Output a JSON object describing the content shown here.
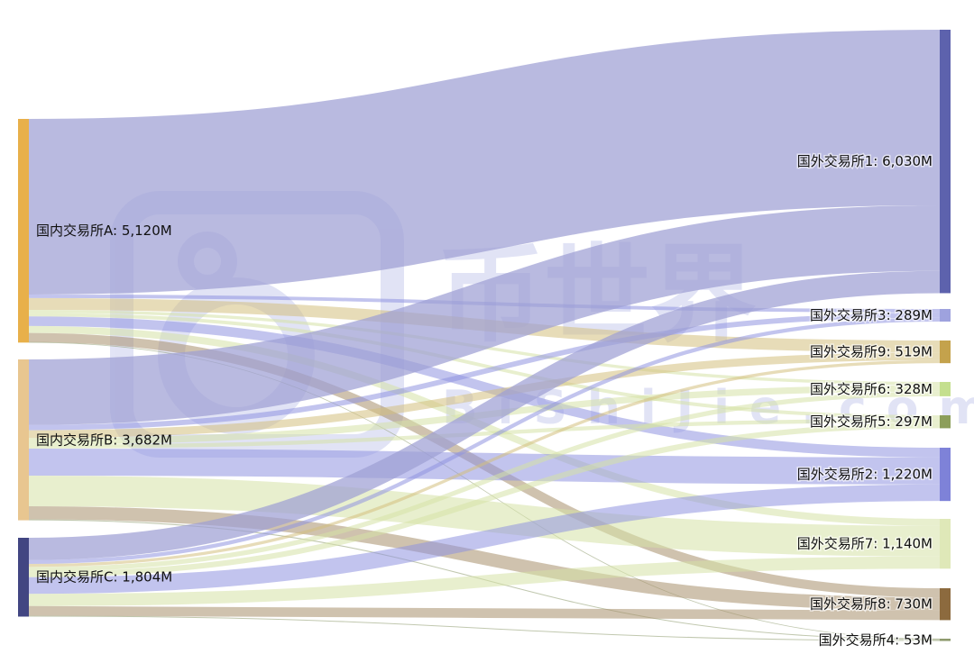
{
  "watermark": {
    "brand": "币世界",
    "domain": "BiShiJie.com",
    "color": "#7b84d6"
  },
  "chart_data": {
    "type": "sankey",
    "unit": "M",
    "sources": [
      {
        "id": "A",
        "label": "国内交易所A: 5,120M",
        "value": 5120,
        "color": "#e8b04a"
      },
      {
        "id": "B",
        "label": "国内交易所B: 3,682M",
        "value": 3682,
        "color": "#e8c690"
      },
      {
        "id": "C",
        "label": "国内交易所C: 1,804M",
        "value": 1804,
        "color": "#424682"
      }
    ],
    "targets": [
      {
        "id": "1",
        "label": "国外交易所1: 6,030M",
        "value": 6030,
        "color": "#5d62ad"
      },
      {
        "id": "3",
        "label": "国外交易所3: 289M",
        "value": 289,
        "color": "#9ea2de"
      },
      {
        "id": "9",
        "label": "国外交易所9: 519M",
        "value": 519,
        "color": "#c4a24c"
      },
      {
        "id": "6",
        "label": "国外交易所6: 328M",
        "value": 328,
        "color": "#c4df8e"
      },
      {
        "id": "5",
        "label": "国外交易所5: 297M",
        "value": 297,
        "color": "#8c9e5a"
      },
      {
        "id": "2",
        "label": "国外交易所2: 1,220M",
        "value": 1220,
        "color": "#7e82d8"
      },
      {
        "id": "7",
        "label": "国外交易所7: 1,140M",
        "value": 1140,
        "color": "#dfe8b8"
      },
      {
        "id": "8",
        "label": "国外交易所8: 730M",
        "value": 730,
        "color": "#8c6a3e"
      },
      {
        "id": "4",
        "label": "国外交易所4: 53M",
        "value": 53,
        "color": "#8e9a6e"
      }
    ],
    "links": [
      {
        "source": "A",
        "target": "1",
        "value": 4020
      },
      {
        "source": "A",
        "target": "3",
        "value": 80
      },
      {
        "source": "A",
        "target": "9",
        "value": 270
      },
      {
        "source": "A",
        "target": "6",
        "value": 70
      },
      {
        "source": "A",
        "target": "5",
        "value": 80
      },
      {
        "source": "A",
        "target": "2",
        "value": 220
      },
      {
        "source": "A",
        "target": "7",
        "value": 160
      },
      {
        "source": "A",
        "target": "8",
        "value": 210
      },
      {
        "source": "A",
        "target": "4",
        "value": 10
      },
      {
        "source": "B",
        "target": "1",
        "value": 1500
      },
      {
        "source": "B",
        "target": "3",
        "value": 120
      },
      {
        "source": "B",
        "target": "9",
        "value": 180
      },
      {
        "source": "B",
        "target": "6",
        "value": 150
      },
      {
        "source": "B",
        "target": "5",
        "value": 90
      },
      {
        "source": "B",
        "target": "2",
        "value": 620
      },
      {
        "source": "B",
        "target": "7",
        "value": 700
      },
      {
        "source": "B",
        "target": "8",
        "value": 300
      },
      {
        "source": "B",
        "target": "4",
        "value": 22
      },
      {
        "source": "C",
        "target": "1",
        "value": 510
      },
      {
        "source": "C",
        "target": "3",
        "value": 89
      },
      {
        "source": "C",
        "target": "9",
        "value": 69
      },
      {
        "source": "C",
        "target": "6",
        "value": 108
      },
      {
        "source": "C",
        "target": "5",
        "value": 127
      },
      {
        "source": "C",
        "target": "2",
        "value": 380
      },
      {
        "source": "C",
        "target": "7",
        "value": 280
      },
      {
        "source": "C",
        "target": "8",
        "value": 220
      },
      {
        "source": "C",
        "target": "4",
        "value": 21
      }
    ]
  }
}
